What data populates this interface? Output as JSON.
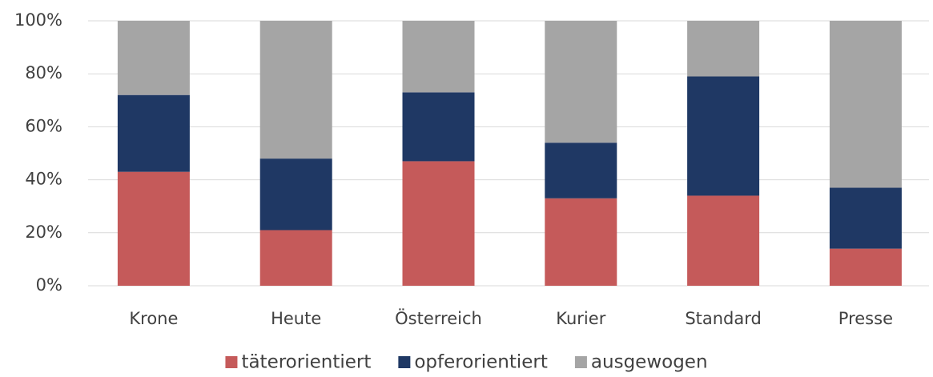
{
  "chart_data": {
    "type": "stacked_bar",
    "categories": [
      "Krone",
      "Heute",
      "Österreich",
      "Kurier",
      "Standard",
      "Presse"
    ],
    "series": [
      {
        "name": "täterorientiert",
        "color": "#c55a5a",
        "values": [
          43,
          21,
          47,
          33,
          34,
          14
        ]
      },
      {
        "name": "opferorientiert",
        "color": "#1f3864",
        "values": [
          29,
          27,
          26,
          21,
          45,
          23
        ]
      },
      {
        "name": "ausgewogen",
        "color": "#a5a5a5",
        "values": [
          28,
          52,
          27,
          46,
          21,
          63
        ]
      }
    ],
    "ylim": [
      0,
      100
    ],
    "yticks": [
      {
        "value": 0,
        "label": "0%"
      },
      {
        "value": 20,
        "label": "20%"
      },
      {
        "value": 40,
        "label": "40%"
      },
      {
        "value": 60,
        "label": "60%"
      },
      {
        "value": 80,
        "label": "80%"
      },
      {
        "value": 100,
        "label": "100%"
      }
    ],
    "grid": true,
    "legend": "bottom"
  }
}
